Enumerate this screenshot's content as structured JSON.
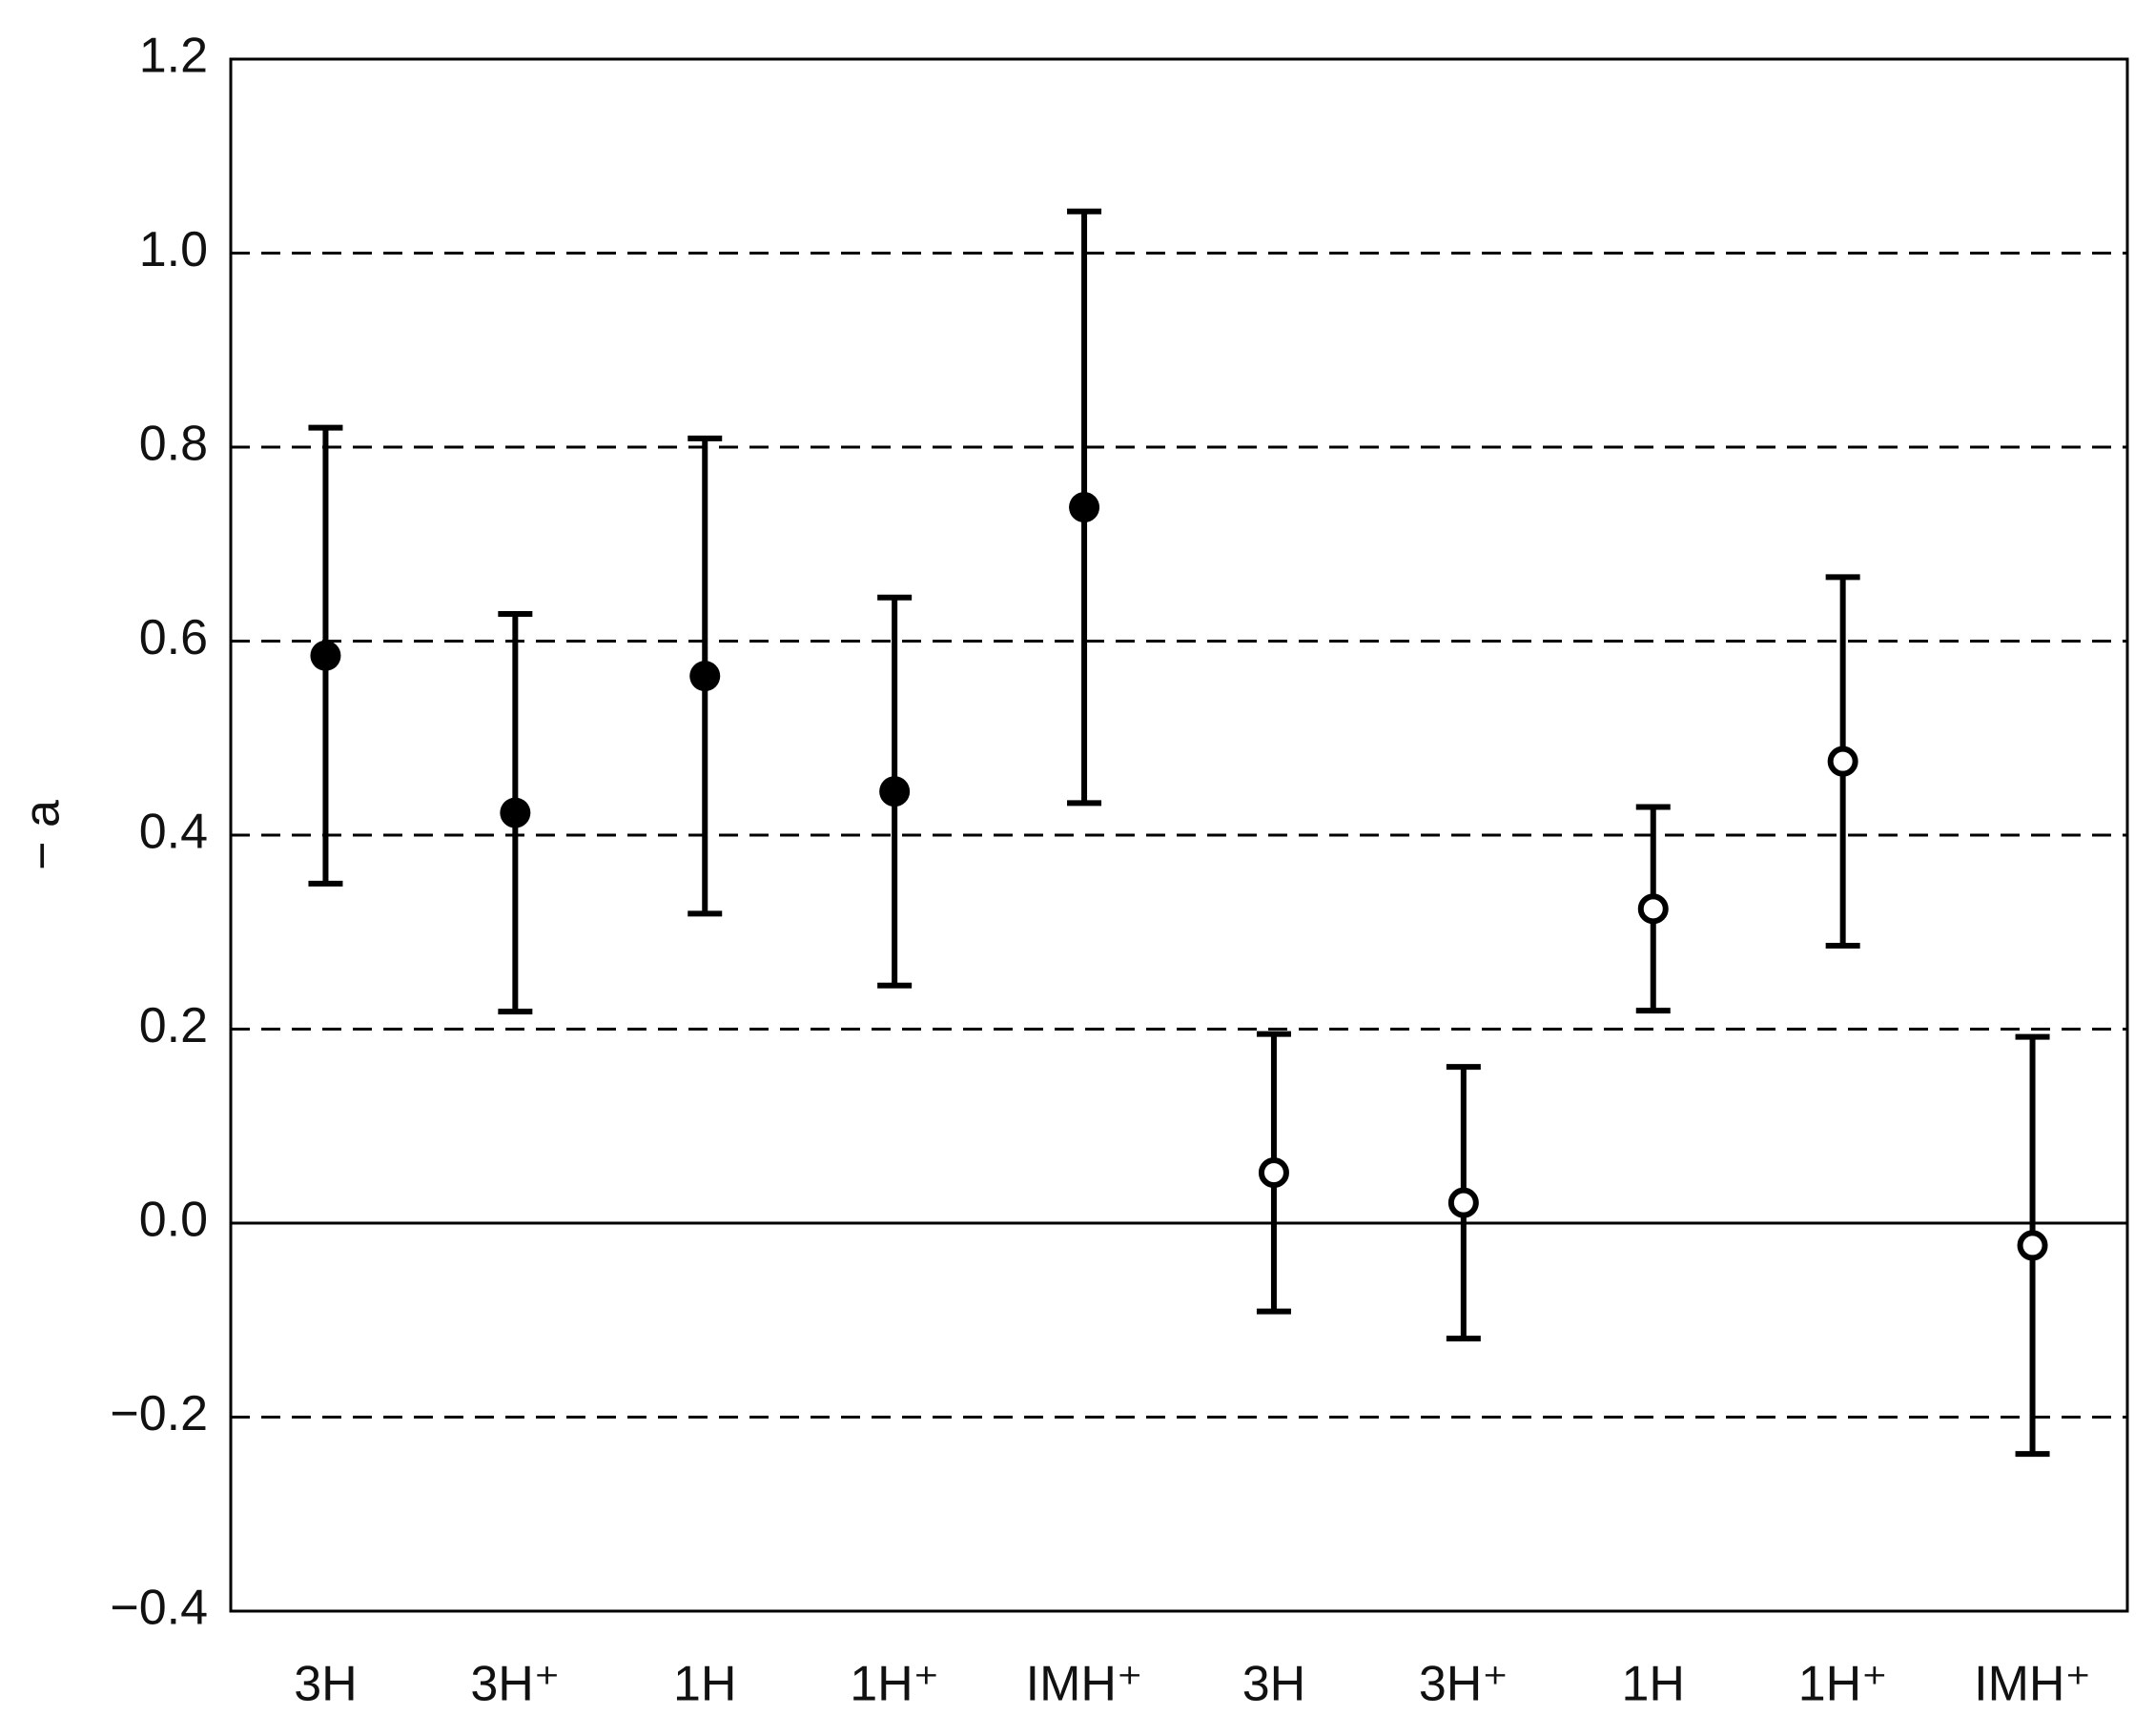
{
  "chart_data": {
    "type": "errorbar",
    "ylabel": "− a",
    "categories": [
      "3H",
      "3H⁺",
      "1H",
      "1H⁺",
      "IMH⁺",
      "3H",
      "3H⁺",
      "1H",
      "1H⁺",
      "IMH⁺"
    ],
    "series": [
      {
        "color": "#000000",
        "marker": "filled",
        "values": [
          0.585,
          0.423,
          0.564,
          0.445,
          0.738,
          null,
          null,
          null,
          null,
          null
        ],
        "errors": [
          0.235,
          0.205,
          0.245,
          0.2,
          0.305,
          null,
          null,
          null,
          null,
          null
        ]
      },
      {
        "color": "#000000",
        "marker": "open",
        "values": [
          null,
          null,
          null,
          null,
          null,
          0.052,
          0.021,
          0.324,
          0.476,
          -0.023
        ],
        "errors": [
          null,
          null,
          null,
          null,
          null,
          0.143,
          0.14,
          0.105,
          0.19,
          0.215
        ]
      }
    ],
    "ylim": [
      -0.4,
      1.2
    ],
    "yticks": [
      {
        "value": -0.4,
        "label": "−0.4"
      },
      {
        "value": -0.2,
        "label": "−0.2"
      },
      {
        "value": 0,
        "label": "0.0"
      },
      0.2,
      0.4,
      0.6,
      0.8,
      {
        "value": 1,
        "label": "1.0"
      },
      1.2
    ],
    "grid": true
  }
}
